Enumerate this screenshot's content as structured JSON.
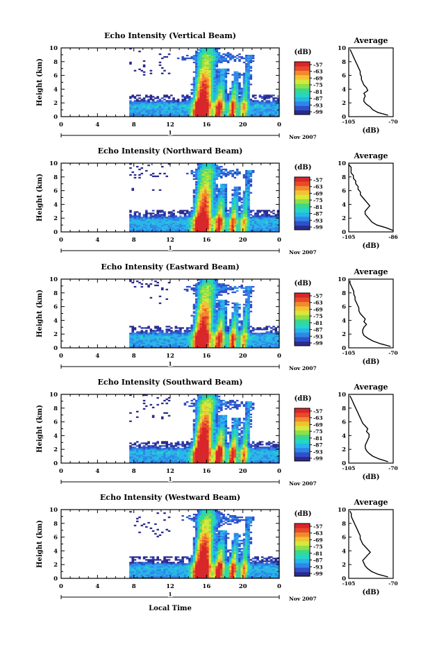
{
  "chart_data": {
    "type": "heatmap",
    "date_label": "Nov 2007",
    "xlabel": "Local Time",
    "ylabel": "Height (km)",
    "x_ticks": [
      "0",
      "4",
      "8",
      "12",
      "16",
      "20",
      "0"
    ],
    "x_range": [
      0,
      24
    ],
    "y_ticks": [
      "0",
      "2",
      "4",
      "6",
      "8",
      "10"
    ],
    "y_range": [
      0,
      10
    ],
    "day_marker": "1",
    "colorbar_unit": "(dB)",
    "colorbar_ticks": [
      "-57",
      "-63",
      "-69",
      "-75",
      "-81",
      "-87",
      "-93",
      "-99"
    ],
    "colorscale": [
      "#2b2b8f",
      "#2f50c8",
      "#2f86e8",
      "#27b6e8",
      "#25d6c4",
      "#3bd88a",
      "#8de04a",
      "#d6e83a",
      "#f2c232",
      "#f2892d",
      "#e84a2a",
      "#d8262a"
    ],
    "avg_title": "Average",
    "avg_xlabel": "(dB)",
    "avg_y_ticks": [
      "0",
      "2",
      "4",
      "6",
      "8",
      "10"
    ],
    "panels": [
      {
        "title": "Echo Intensity (Vertical Beam)",
        "avg_x_ticks": [
          "-105",
          "-70"
        ],
        "avg_x_range": [
          -105,
          -70
        ],
        "avg_profile": {
          "height": [
            0.2,
            0.6,
            1.0,
            1.4,
            1.8,
            2.2,
            2.6,
            3.0,
            3.4,
            3.8,
            4.2,
            4.6,
            5.0,
            5.4,
            5.8,
            6.2,
            6.6,
            7.0,
            7.4,
            7.8,
            8.2,
            8.6,
            9.0,
            9.4,
            9.8
          ],
          "value": [
            -74,
            -82,
            -86,
            -88,
            -91,
            -93,
            -93,
            -92,
            -93,
            -90,
            -91,
            -93,
            -94,
            -95,
            -95,
            -96,
            -96,
            -97,
            -98,
            -99,
            -100,
            -101,
            -102,
            -103,
            -104
          ]
        }
      },
      {
        "title": "Echo Intensity (Northward Beam)",
        "avg_x_ticks": [
          "-105",
          "-86"
        ],
        "avg_x_range": [
          -105,
          -86
        ],
        "avg_profile": {
          "height": [
            0.2,
            0.6,
            1.0,
            1.4,
            1.8,
            2.2,
            2.6,
            3.0,
            3.4,
            3.8,
            4.2,
            4.6,
            5.0,
            5.4,
            5.8,
            6.2,
            6.6,
            7.0,
            7.4,
            7.8,
            8.2,
            8.6,
            9.0,
            9.4,
            9.8
          ],
          "value": [
            -86,
            -89,
            -93,
            -95,
            -96,
            -97,
            -98,
            -98,
            -97,
            -96,
            -97,
            -98,
            -99,
            -100,
            -100,
            -101,
            -101,
            -102,
            -102,
            -103,
            -103,
            -104,
            -104,
            -104,
            -105
          ]
        }
      },
      {
        "title": "Echo Intensity (Eastward Beam)",
        "avg_x_ticks": [
          "-105",
          "-70"
        ],
        "avg_x_range": [
          -105,
          -70
        ],
        "avg_profile": {
          "height": [
            0.2,
            0.6,
            1.0,
            1.4,
            1.8,
            2.2,
            2.6,
            3.0,
            3.4,
            3.8,
            4.2,
            4.6,
            5.0,
            5.4,
            5.8,
            6.2,
            6.6,
            7.0,
            7.4,
            7.8,
            8.2,
            8.6,
            9.0,
            9.4,
            9.8
          ],
          "value": [
            -72,
            -80,
            -86,
            -90,
            -93,
            -94,
            -94,
            -93,
            -91,
            -93,
            -92,
            -94,
            -96,
            -97,
            -97,
            -98,
            -99,
            -100,
            -100,
            -101,
            -101,
            -102,
            -103,
            -104,
            -104
          ]
        }
      },
      {
        "title": "Echo Intensity (Southward Beam)",
        "avg_x_ticks": [
          "-105",
          "-70"
        ],
        "avg_x_range": [
          -105,
          -70
        ],
        "avg_profile": {
          "height": [
            0.2,
            0.6,
            1.0,
            1.4,
            1.8,
            2.2,
            2.6,
            3.0,
            3.4,
            3.8,
            4.2,
            4.6,
            5.0,
            5.4,
            5.8,
            6.2,
            6.6,
            7.0,
            7.4,
            7.8,
            8.2,
            8.6,
            9.0,
            9.4,
            9.8
          ],
          "value": [
            -74,
            -81,
            -86,
            -89,
            -91,
            -92,
            -92,
            -91,
            -90,
            -89,
            -89,
            -91,
            -90,
            -92,
            -94,
            -95,
            -96,
            -97,
            -98,
            -99,
            -100,
            -101,
            -102,
            -103,
            -104
          ]
        }
      },
      {
        "title": "Echo Intensity (Westward Beam)",
        "avg_x_ticks": [
          "-105",
          "-70"
        ],
        "avg_x_range": [
          -105,
          -70
        ],
        "avg_profile": {
          "height": [
            0.2,
            0.6,
            1.0,
            1.4,
            1.8,
            2.2,
            2.6,
            3.0,
            3.4,
            3.8,
            4.2,
            4.6,
            5.0,
            5.4,
            5.8,
            6.2,
            6.6,
            7.0,
            7.4,
            7.8,
            8.2,
            8.6,
            9.0,
            9.4,
            9.8
          ],
          "value": [
            -74,
            -82,
            -87,
            -90,
            -92,
            -93,
            -94,
            -92,
            -90,
            -88,
            -90,
            -92,
            -94,
            -95,
            -96,
            -96,
            -97,
            -98,
            -99,
            -100,
            -101,
            -102,
            -103,
            -103,
            -104
          ]
        }
      }
    ]
  }
}
